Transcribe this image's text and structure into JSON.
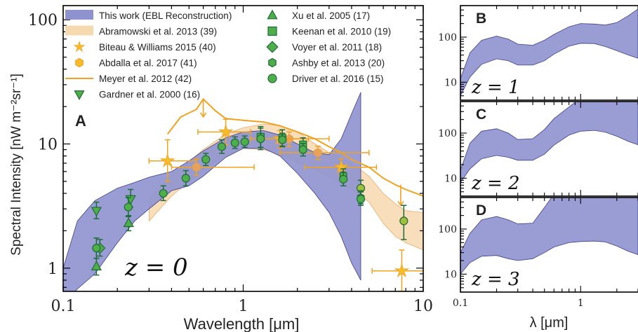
{
  "colors": {
    "ebl": "#8e92cf",
    "ebl_edge": "#3d3f88",
    "abramowski": "#f7d9b0",
    "abramowski_edge": "#e4a252",
    "orange": "#f1a21f",
    "star": "#f6bc2b",
    "green_fill": "#4fae4a",
    "green_edge": "#1e6b3a",
    "olive_fill": "#9fbf3d"
  },
  "chart_data": [
    {
      "panel": "A",
      "type": "line",
      "xlabel": "Wavelength [μm]",
      "ylabel": "Spectral Intensity [nW m⁻²sr⁻¹]",
      "xscale": "log",
      "yscale": "log",
      "xlim": [
        0.1,
        10
      ],
      "ylim": [
        0.65,
        130
      ],
      "xticks": [
        0.1,
        1,
        10
      ],
      "xtick_labels": [
        "0.1",
        "1",
        "10"
      ],
      "yticks": [
        1,
        10,
        100
      ],
      "ytick_labels": [
        "1",
        "10",
        "100"
      ],
      "annotation": "z = 0",
      "legend_position": "top (two columns)",
      "ebl_band": {
        "name": "This work (EBL Reconstruction)",
        "x": [
          0.1,
          0.12,
          0.15,
          0.2,
          0.25,
          0.3,
          0.4,
          0.5,
          0.6,
          0.8,
          1.0,
          1.3,
          1.6,
          2.0,
          2.5,
          3.0,
          3.5,
          4.0,
          4.5
        ],
        "upper": [
          1.0,
          2.4,
          3.5,
          4.4,
          4.9,
          5.4,
          6.0,
          7.3,
          8.8,
          11.2,
          12.5,
          12.8,
          11.8,
          10.0,
          8.5,
          8.2,
          11.0,
          17.5,
          26.0
        ],
        "lower": [
          0.5,
          0.68,
          0.9,
          1.6,
          2.4,
          3.0,
          4.2,
          4.6,
          5.5,
          7.8,
          9.2,
          9.2,
          8.0,
          5.8,
          4.0,
          2.8,
          1.8,
          1.1,
          0.8
        ]
      },
      "abramowski_band": {
        "name": "Abramowski et al. 2013 (39)",
        "x": [
          0.3,
          0.4,
          0.5,
          0.6,
          0.8,
          1.0,
          1.3,
          1.6,
          2.0,
          2.5,
          3.0,
          4.0,
          5.0,
          6.0,
          7.0,
          8.0,
          10.0
        ],
        "upper": [
          3.6,
          5.6,
          7.2,
          9.0,
          12.0,
          13.5,
          14.5,
          14.0,
          12.5,
          10.0,
          8.5,
          7.0,
          5.5,
          4.0,
          3.3,
          2.9,
          2.8
        ],
        "lower": [
          2.4,
          3.8,
          5.0,
          6.2,
          8.2,
          9.2,
          9.0,
          8.2,
          7.2,
          6.2,
          5.5,
          4.3,
          3.4,
          2.3,
          1.8,
          1.6,
          1.4
        ]
      },
      "meyer_line": {
        "name": "Meyer et al. 2012 (42)",
        "x": [
          0.38,
          0.45,
          0.55,
          0.6,
          0.7,
          0.8,
          1.0,
          1.3,
          1.6,
          2.0,
          2.5,
          3.0,
          3.5,
          4.0,
          5.0,
          6.0,
          7.0,
          8.0,
          10.0
        ],
        "y": [
          12.0,
          16.5,
          19.0,
          23.0,
          18.5,
          16.0,
          15.5,
          15.0,
          14.0,
          12.5,
          11.0,
          9.5,
          8.5,
          7.5,
          6.5,
          5.3,
          4.7,
          4.3,
          3.8
        ]
      },
      "meyer_limits": [
        {
          "x": 0.6,
          "y_from": 23.0,
          "y_to": 16.5
        },
        {
          "x": 7.5,
          "y_from": 4.7,
          "y_to": 3.2
        }
      ],
      "biteau_williams": {
        "name": "Biteau & Williams 2015 (40)",
        "points": [
          {
            "x": 0.38,
            "y": 7.3,
            "xlo": 0.3,
            "xhi": 0.55,
            "ylo": 5.0,
            "yhi": 10.8
          },
          {
            "x": 0.8,
            "y": 12.5,
            "xlo": 0.56,
            "xhi": 1.1,
            "ylo": 9.8,
            "yhi": 15.8
          },
          {
            "x": 1.6,
            "y": 11.0,
            "xlo": 1.1,
            "xhi": 2.3,
            "ylo": 9.3,
            "yhi": 12.8
          },
          {
            "x": 3.5,
            "y": 6.5,
            "xlo": 2.2,
            "xhi": 5.5,
            "ylo": 5.6,
            "yhi": 7.6
          },
          {
            "x": 7.6,
            "y": 0.95,
            "xlo": 5.2,
            "xhi": 10.0,
            "ylo": 0.65,
            "yhi": 1.4
          }
        ]
      },
      "abdalla": {
        "name": "Abdalla et al. 2017 (41)",
        "points": [
          {
            "x": 0.55,
            "y": 6.5,
            "xlo": 0.4,
            "xhi": 1.15,
            "ylo": 5.6,
            "yhi": 7.6
          },
          {
            "x": 1.8,
            "y": 11.0,
            "xlo": 1.1,
            "xhi": 3.0,
            "ylo": 9.5,
            "yhi": 12.5
          },
          {
            "x": 2.6,
            "y": 8.5,
            "xlo": 1.6,
            "xhi": 5.0,
            "ylo": 7.5,
            "yhi": 9.6
          }
        ]
      },
      "gardner": {
        "name": "Gardner et al. 2000 (16)",
        "points": [
          {
            "x": 0.153,
            "y": 2.9,
            "ylo": 2.5,
            "yhi": 3.4
          },
          {
            "x": 0.237,
            "y": 3.6,
            "ylo": 3.1,
            "yhi": 4.3
          }
        ]
      },
      "xu": {
        "name": "Xu et al. 2005 (17)",
        "points": [
          {
            "x": 0.153,
            "y": 1.03,
            "ylo": 0.88,
            "yhi": 1.2
          },
          {
            "x": 0.231,
            "y": 2.3,
            "ylo": 2.0,
            "yhi": 2.65
          }
        ]
      },
      "keenan": {
        "name": "Keenan et al. 2010 (19)",
        "points": [
          {
            "x": 1.25,
            "y": 11.4,
            "ylo": 9.4,
            "yhi": 13.8
          },
          {
            "x": 1.65,
            "y": 11.2,
            "ylo": 9.6,
            "yhi": 13.0
          },
          {
            "x": 2.15,
            "y": 9.9,
            "ylo": 8.7,
            "yhi": 11.2
          }
        ]
      },
      "voyer": {
        "name": "Voyer et al. 2011 (18)",
        "points": [
          {
            "x": 0.16,
            "y": 1.45,
            "ylo": 1.25,
            "yhi": 1.7
          }
        ]
      },
      "ashby": {
        "name": "Ashby et al. 2013 (20)",
        "points": [
          {
            "x": 3.6,
            "y": 5.6,
            "ylo": 5.0,
            "yhi": 6.3
          },
          {
            "x": 4.5,
            "y": 3.7,
            "ylo": 3.3,
            "yhi": 4.2
          }
        ]
      },
      "driver": {
        "name": "Driver et al. 2016 (15)",
        "points": [
          {
            "x": 0.153,
            "y": 1.45,
            "ylo": 1.2,
            "yhi": 1.75
          },
          {
            "x": 0.23,
            "y": 3.1,
            "ylo": 2.6,
            "yhi": 3.7
          },
          {
            "x": 0.36,
            "y": 4.0,
            "ylo": 3.5,
            "yhi": 4.6
          },
          {
            "x": 0.48,
            "y": 5.3,
            "ylo": 4.6,
            "yhi": 6.1
          },
          {
            "x": 0.62,
            "y": 7.5,
            "ylo": 6.7,
            "yhi": 8.4
          },
          {
            "x": 0.76,
            "y": 9.5,
            "ylo": 8.4,
            "yhi": 10.8
          },
          {
            "x": 0.9,
            "y": 10.2,
            "ylo": 9.2,
            "yhi": 11.4
          },
          {
            "x": 1.02,
            "y": 10.4,
            "ylo": 9.4,
            "yhi": 11.6
          },
          {
            "x": 1.25,
            "y": 11.0,
            "ylo": 9.0,
            "yhi": 13.4
          },
          {
            "x": 1.65,
            "y": 10.8,
            "ylo": 9.5,
            "yhi": 12.2
          },
          {
            "x": 2.15,
            "y": 9.0,
            "ylo": 8.0,
            "yhi": 10.1
          },
          {
            "x": 3.6,
            "y": 5.2,
            "ylo": 4.6,
            "yhi": 5.9
          },
          {
            "x": 4.5,
            "y": 3.6,
            "ylo": 3.2,
            "yhi": 4.1
          }
        ]
      },
      "olive_points": {
        "points": [
          {
            "x": 4.5,
            "y": 4.4,
            "ylo": 3.8,
            "yhi": 5.1
          },
          {
            "x": 7.8,
            "y": 2.4,
            "ylo": 1.7,
            "yhi": 3.2
          }
        ]
      },
      "legend_order": [
        "ebl_band",
        "abramowski_band",
        "biteau_williams",
        "abdalla",
        "meyer_line",
        "gardner",
        "xu",
        "keenan",
        "voyer",
        "ashby",
        "driver"
      ]
    },
    {
      "panel": "B",
      "type": "area",
      "annotation": "z = 1",
      "xscale": "log",
      "yscale": "log",
      "xlim": [
        0.1,
        3
      ],
      "ylim": [
        4,
        500
      ],
      "yticks": [
        10,
        100
      ],
      "ytick_labels": [
        "10",
        "100"
      ],
      "x": [
        0.1,
        0.12,
        0.15,
        0.2,
        0.25,
        0.3,
        0.4,
        0.5,
        0.6,
        0.8,
        1.0,
        1.3,
        1.6,
        2.0,
        2.5,
        3.0
      ],
      "upper": [
        12,
        45,
        85,
        105,
        90,
        70,
        66,
        85,
        115,
        170,
        200,
        195,
        185,
        210,
        300,
        420
      ],
      "lower": [
        5,
        13,
        25,
        33,
        30,
        24,
        24,
        30,
        42,
        63,
        73,
        72,
        62,
        50,
        40,
        34
      ]
    },
    {
      "panel": "C",
      "type": "area",
      "annotation": "z = 2",
      "xscale": "log",
      "yscale": "log",
      "xlim": [
        0.1,
        3
      ],
      "ylim": [
        4,
        500
      ],
      "yticks": [
        10,
        100
      ],
      "ytick_labels": [
        "10",
        "100"
      ],
      "x": [
        0.1,
        0.12,
        0.15,
        0.2,
        0.25,
        0.3,
        0.4,
        0.5,
        0.6,
        0.8,
        1.0,
        1.3,
        1.6,
        2.0,
        2.5,
        3.0
      ],
      "upper": [
        15,
        60,
        110,
        125,
        100,
        72,
        75,
        120,
        210,
        380,
        600,
        800,
        900,
        900,
        900,
        900
      ],
      "lower": [
        8,
        16,
        27,
        32,
        29,
        25,
        25,
        34,
        54,
        90,
        110,
        115,
        105,
        85,
        65,
        55
      ]
    },
    {
      "panel": "D",
      "type": "area",
      "annotation": "z = 3",
      "xscale": "log",
      "yscale": "log",
      "xlim": [
        0.1,
        3
      ],
      "ylim": [
        4,
        500
      ],
      "yticks": [
        10,
        100
      ],
      "ytick_labels": [
        "10",
        "100"
      ],
      "x": [
        0.1,
        0.12,
        0.15,
        0.2,
        0.25,
        0.3,
        0.4,
        0.5,
        0.6,
        0.8,
        1.0,
        1.3,
        1.6,
        2.0,
        2.5,
        3.0
      ],
      "upper": [
        30,
        80,
        160,
        190,
        160,
        130,
        135,
        300,
        600,
        900,
        900,
        900,
        900,
        900,
        900,
        900
      ],
      "lower": [
        10,
        18,
        25,
        26,
        22,
        20,
        22,
        30,
        40,
        50,
        53,
        54,
        52,
        42,
        32,
        27
      ]
    }
  ],
  "shared_x": {
    "xlabel": "λ [μm]",
    "xticks": [
      0.1,
      1
    ],
    "xtick_labels": [
      "0.1",
      "1"
    ]
  }
}
